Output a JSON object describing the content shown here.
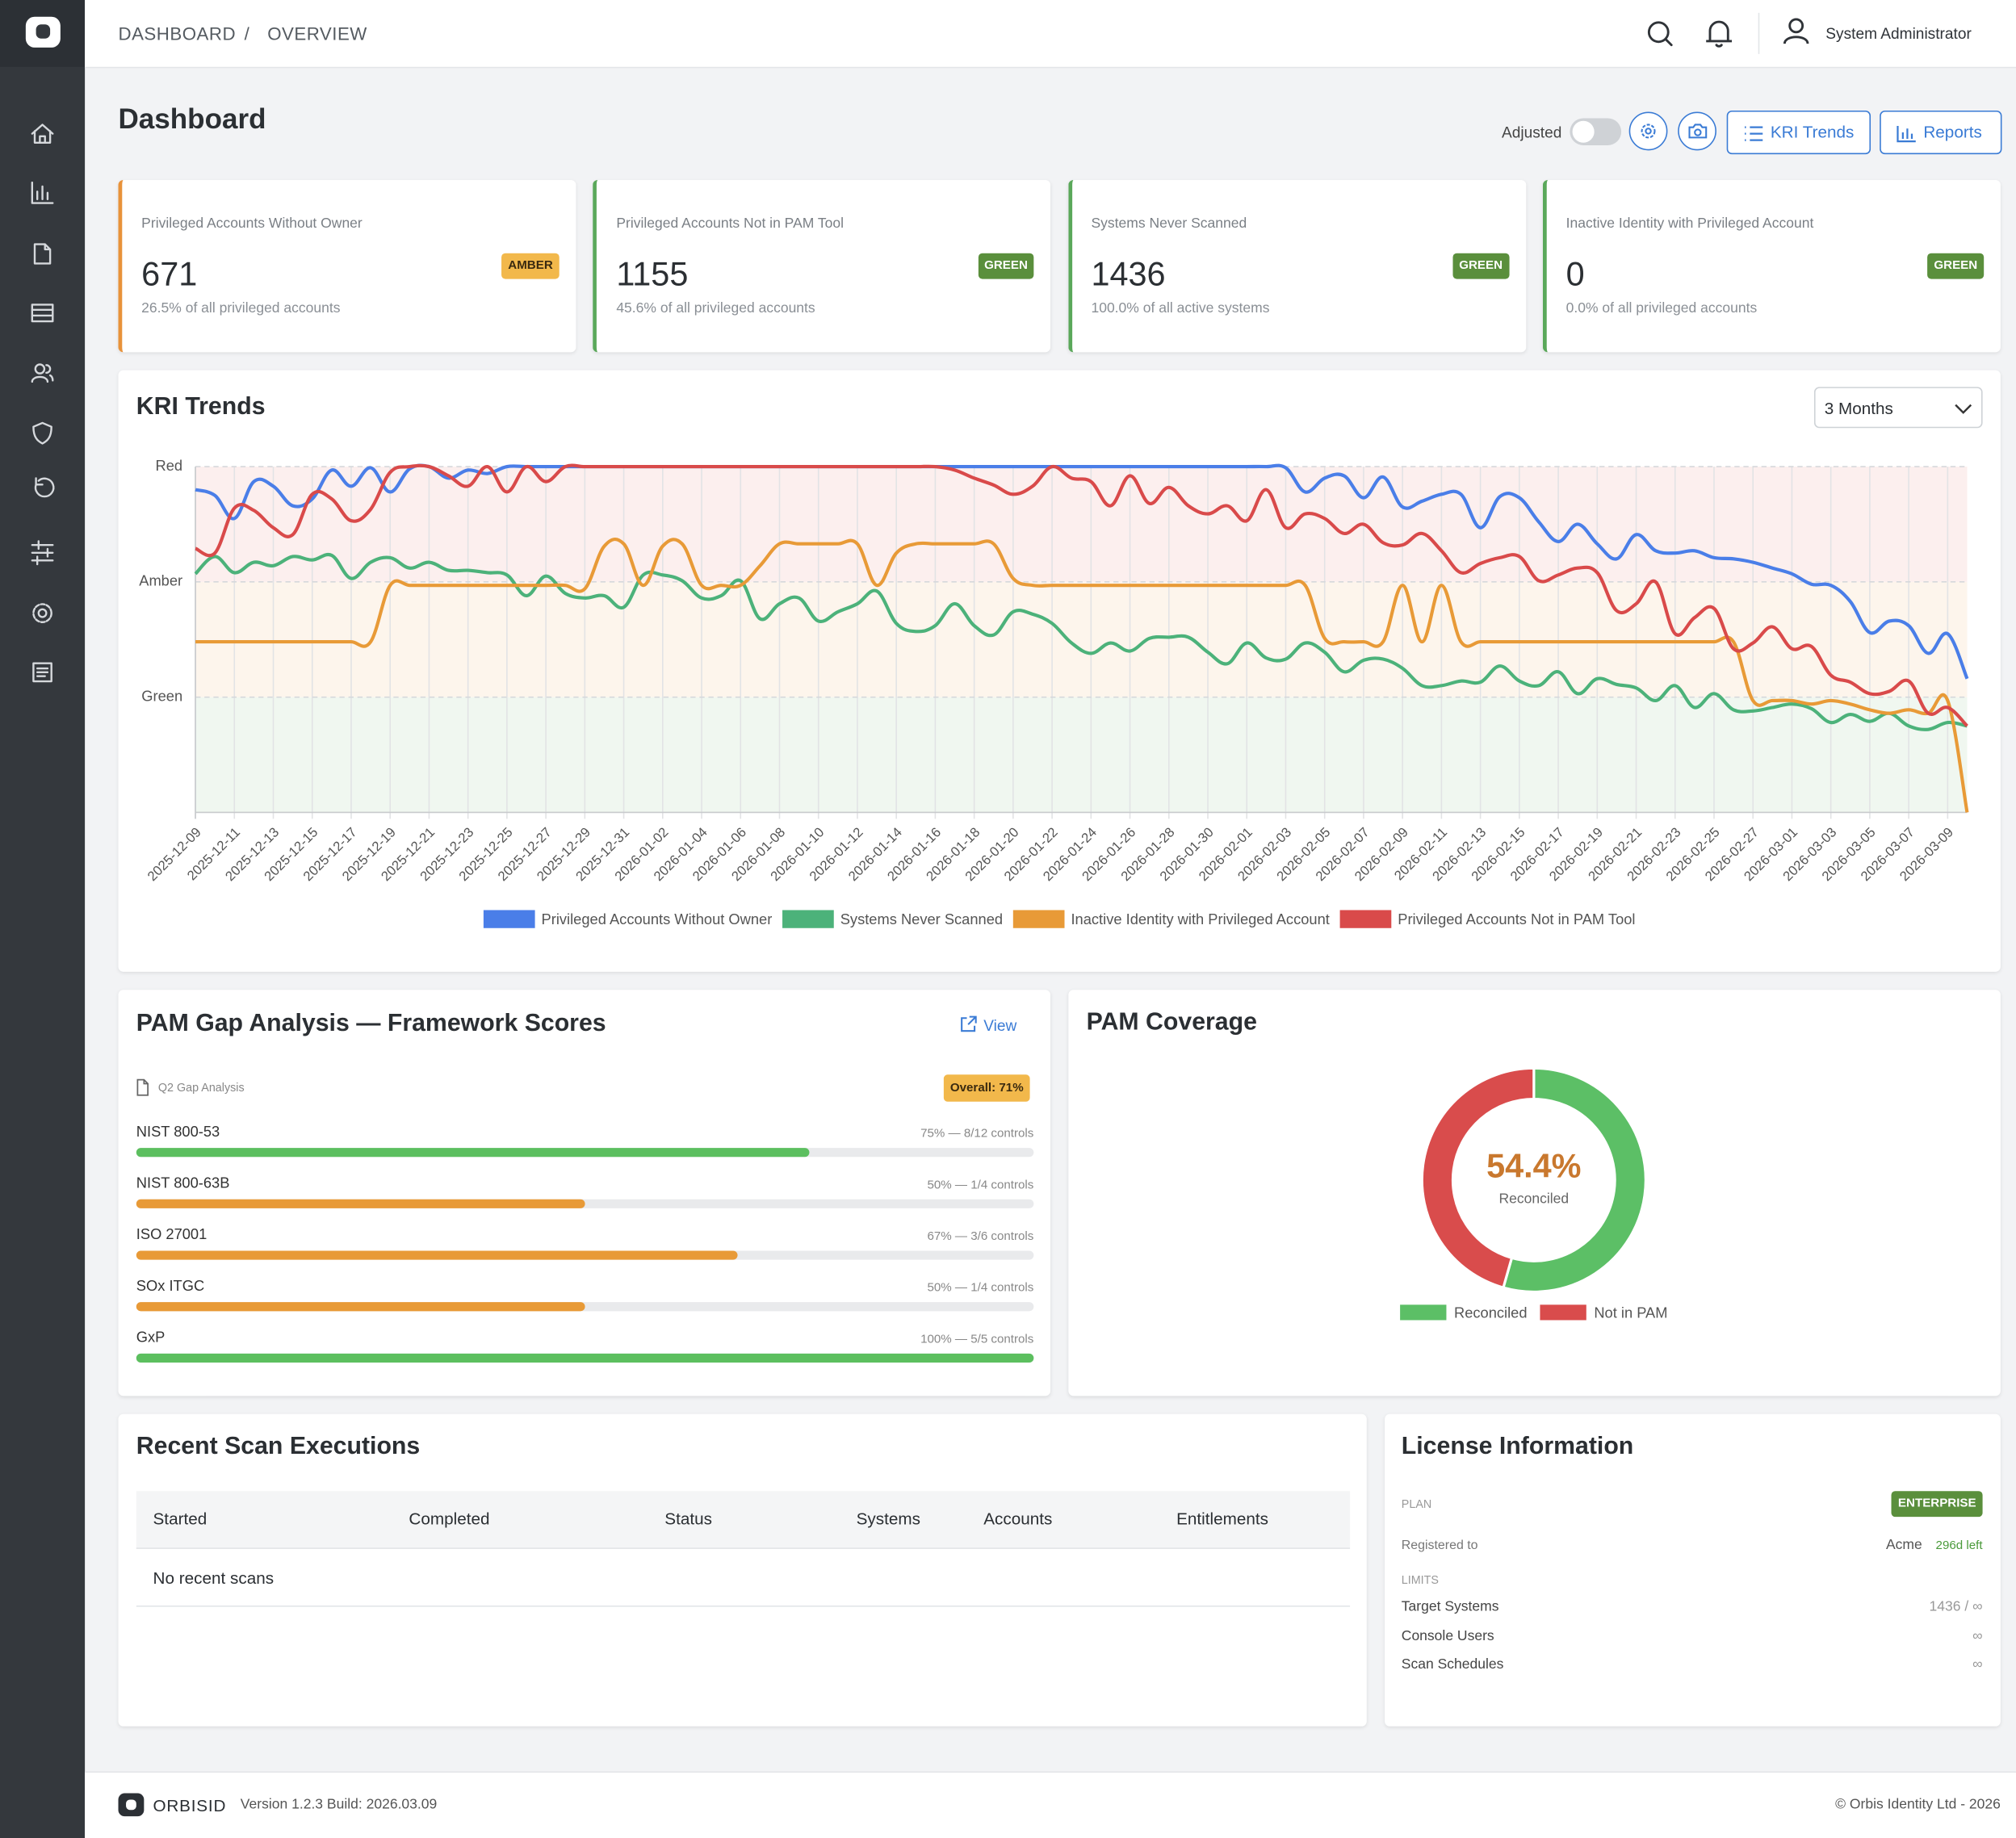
{
  "header": {
    "breadcrumb": [
      "DASHBOARD",
      "OVERVIEW"
    ],
    "separator": "/",
    "user": "System Administrator"
  },
  "page": {
    "title": "Dashboard",
    "toggle_label": "Adjusted",
    "buttons": [
      "KRI Trends",
      "Reports"
    ]
  },
  "kpis": [
    {
      "label": "Privileged Accounts Without Owner",
      "value": 671,
      "note": "26.5% of all privileged accounts",
      "status": "AMBER",
      "color": "#e8923a",
      "status_color": "#f2b84b",
      "status_text_color": "#3a2a10"
    },
    {
      "label": "Privileged Accounts Not in PAM Tool",
      "value": 1155,
      "note": "45.6% of all privileged accounts",
      "status": "GREEN",
      "color": "#5aa85a",
      "status_color": "#5a8f3c",
      "status_text_color": "#ffffff"
    },
    {
      "label": "Systems Never Scanned",
      "value": 1436,
      "note": "100.0% of all active systems",
      "status": "GREEN",
      "color": "#5aa85a",
      "status_color": "#5a8f3c",
      "status_text_color": "#ffffff"
    },
    {
      "label": "Inactive Identity with Privileged Account",
      "value": 0,
      "note": "0.0% of all privileged accounts",
      "status": "GREEN",
      "color": "#5aa85a",
      "status_color": "#5a8f3c",
      "status_text_color": "#ffffff"
    }
  ],
  "chart_data": [
    {
      "type": "line",
      "title": "KRI Trends",
      "range_select": "3 Months",
      "ylim": [
        0,
        3
      ],
      "yticks": [
        {
          "value": 1,
          "label": "Green"
        },
        {
          "value": 2,
          "label": "Amber"
        },
        {
          "value": 3,
          "label": "Red"
        }
      ],
      "zones": [
        {
          "from": 0,
          "to": 1,
          "color": "#f0f7f0"
        },
        {
          "from": 1,
          "to": 2,
          "color": "#fdf5ec"
        },
        {
          "from": 2,
          "to": 3,
          "color": "#fcefee"
        }
      ],
      "grid": true,
      "legend": "bottom",
      "categories": [
        "2025-12-09",
        null,
        "2025-12-11",
        null,
        "2025-12-13",
        null,
        "2025-12-15",
        null,
        "2025-12-17",
        null,
        "2025-12-19",
        null,
        "2025-12-21",
        null,
        "2025-12-23",
        null,
        "2025-12-25",
        null,
        "2025-12-27",
        null,
        "2025-12-29",
        null,
        "2025-12-31",
        null,
        "2026-01-02",
        null,
        "2026-01-04",
        null,
        "2026-01-06",
        null,
        "2026-01-08",
        null,
        "2026-01-10",
        null,
        "2026-01-12",
        null,
        "2026-01-14",
        null,
        "2026-01-16",
        null,
        "2026-01-18",
        null,
        "2026-01-20",
        null,
        "2026-01-22",
        null,
        "2026-01-24",
        null,
        "2026-01-26",
        null,
        "2026-01-28",
        null,
        "2026-01-30",
        null,
        "2026-02-01",
        null,
        "2026-02-03",
        null,
        "2026-02-05",
        null,
        "2026-02-07",
        null,
        "2026-02-09",
        null,
        "2026-02-11",
        null,
        "2026-02-13",
        null,
        "2026-02-15",
        null,
        "2026-02-17",
        null,
        "2026-02-19",
        null,
        "2026-02-21",
        null,
        "2026-02-23",
        null,
        "2026-02-25",
        null,
        "2026-02-27",
        null,
        "2026-03-01",
        null,
        "2026-03-03",
        null,
        "2026-03-05",
        null,
        "2026-03-07",
        null,
        "2026-03-09",
        null
      ],
      "series": [
        {
          "name": "Privileged Accounts Without Owner",
          "color": "#4a7ee8",
          "values": [
            2.8,
            2.75,
            2.55,
            2.87,
            2.83,
            2.66,
            2.72,
            2.97,
            2.83,
            2.99,
            2.78,
            2.98,
            3,
            2.9,
            2.97,
            2.94,
            3,
            3,
            3,
            3,
            3,
            3,
            3,
            3,
            3,
            3,
            3,
            3,
            3,
            3,
            3,
            3,
            3,
            3,
            3,
            3,
            3,
            3,
            3,
            3,
            3,
            3,
            3,
            3,
            3,
            3,
            3,
            3,
            3,
            3,
            3,
            3,
            3,
            3,
            3,
            3,
            2.99,
            2.78,
            2.9,
            2.92,
            2.73,
            2.91,
            2.65,
            2.7,
            2.76,
            2.76,
            2.47,
            2.74,
            2.73,
            2.52,
            2.35,
            2.5,
            2.33,
            2.2,
            2.41,
            2.27,
            2.25,
            2.27,
            2.21,
            2.2,
            2.17,
            2.12,
            2.07,
            1.98,
            1.97,
            1.83,
            1.56,
            1.66,
            1.62,
            1.38,
            1.55,
            1.16
          ]
        },
        {
          "name": "Systems Never Scanned",
          "color": "#4cb27a",
          "values": [
            2.07,
            2.22,
            2.08,
            2.17,
            2.14,
            2.22,
            2.19,
            2.23,
            2.03,
            2.17,
            2.21,
            2.12,
            2.17,
            2.1,
            2.1,
            2.08,
            2.06,
            1.88,
            2.05,
            1.9,
            1.86,
            1.88,
            1.78,
            2.06,
            2.06,
            2.01,
            1.86,
            1.88,
            2.01,
            1.68,
            1.81,
            1.86,
            1.66,
            1.74,
            1.81,
            1.92,
            1.64,
            1.57,
            1.62,
            1.81,
            1.62,
            1.54,
            1.74,
            1.72,
            1.64,
            1.47,
            1.38,
            1.47,
            1.4,
            1.51,
            1.52,
            1.52,
            1.39,
            1.29,
            1.47,
            1.34,
            1.33,
            1.47,
            1.39,
            1.22,
            1.32,
            1.33,
            1.25,
            1.1,
            1.1,
            1.14,
            1.13,
            1.27,
            1.14,
            1.1,
            1.22,
            1.03,
            1.16,
            1.11,
            1.08,
            0.97,
            1.1,
            0.91,
            1.03,
            0.89,
            0.88,
            0.91,
            0.94,
            0.9,
            0.78,
            0.85,
            0.79,
            0.86,
            0.75,
            0.72,
            0.78,
            0.75
          ]
        },
        {
          "name": "Inactive Identity with Privileged Account",
          "color": "#e89a37",
          "values": [
            1.48,
            1.48,
            1.48,
            1.48,
            1.48,
            1.48,
            1.48,
            1.48,
            1.48,
            1.48,
            1.97,
            1.97,
            1.97,
            1.97,
            1.97,
            1.97,
            1.97,
            1.97,
            1.97,
            1.97,
            1.94,
            2.31,
            2.33,
            1.97,
            2.31,
            2.33,
            1.97,
            1.97,
            1.97,
            2.14,
            2.33,
            2.33,
            2.33,
            2.33,
            2.33,
            1.97,
            2.25,
            2.33,
            2.33,
            2.33,
            2.33,
            2.33,
            2.03,
            1.97,
            1.97,
            1.97,
            1.97,
            1.97,
            1.97,
            1.97,
            1.97,
            1.97,
            1.97,
            1.97,
            1.97,
            1.97,
            1.97,
            1.97,
            1.51,
            1.48,
            1.48,
            1.48,
            1.97,
            1.48,
            1.97,
            1.48,
            1.48,
            1.48,
            1.48,
            1.48,
            1.48,
            1.48,
            1.48,
            1.48,
            1.48,
            1.48,
            1.48,
            1.48,
            1.48,
            1.48,
            0.97,
            0.97,
            0.97,
            0.94,
            0.97,
            0.94,
            0.89,
            0.86,
            0.89,
            0.86,
            0.97,
            0
          ]
        },
        {
          "name": "Privileged Accounts Not in PAM Tool",
          "color": "#d94a4a",
          "values": [
            2.29,
            2.25,
            2.64,
            2.62,
            2.47,
            2.41,
            2.76,
            2.72,
            2.53,
            2.63,
            2.95,
            3,
            3,
            2.92,
            2.83,
            3,
            2.78,
            3,
            2.87,
            3,
            3,
            3,
            3,
            3,
            3,
            3,
            3,
            3,
            3,
            3,
            3,
            3,
            3,
            3,
            3,
            3,
            3,
            3,
            3,
            2.97,
            2.9,
            2.84,
            2.76,
            2.83,
            3,
            2.9,
            2.87,
            2.66,
            2.92,
            2.68,
            2.82,
            2.66,
            2.59,
            2.66,
            2.53,
            2.8,
            2.47,
            2.59,
            2.55,
            2.42,
            2.5,
            2.34,
            2.32,
            2.42,
            2.27,
            2.08,
            2.16,
            2.21,
            2.22,
            2.01,
            2.06,
            2.12,
            2.08,
            1.75,
            1.81,
            2.0,
            1.55,
            1.69,
            1.77,
            1.42,
            1.47,
            1.61,
            1.42,
            1.44,
            1.19,
            1.13,
            1.03,
            1.05,
            1.14,
            0.86,
            0.91,
            0.75
          ]
        }
      ]
    },
    {
      "type": "bar",
      "orientation": "horizontal",
      "title": "PAM Gap Analysis — Framework Scores",
      "link": "View",
      "source": "Q2 Gap Analysis",
      "overall": "Overall: 71%",
      "xlim": [
        0,
        100
      ],
      "categories": [
        "NIST 800-53",
        "NIST 800-63B",
        "ISO 27001",
        "SOx ITGC",
        "GxP"
      ],
      "values": [
        75,
        50,
        67,
        50,
        100
      ],
      "value_labels": [
        "75% — 8/12 controls",
        "50% — 1/4 controls",
        "67% — 3/6 controls",
        "50% — 1/4 controls",
        "100% — 5/5 controls"
      ],
      "colors": [
        "#5cbf5f",
        "#e89a37",
        "#e89a37",
        "#e89a37",
        "#5cbf5f"
      ]
    },
    {
      "type": "pie",
      "donut": true,
      "title": "PAM Coverage",
      "categories": [
        "Reconciled",
        "Not in PAM"
      ],
      "values": [
        54.4,
        45.6
      ],
      "value_labels": [
        "54.4%",
        null
      ],
      "colors": [
        "#5cbf66",
        "#d94c4c"
      ],
      "legend": "bottom"
    }
  ],
  "scans": {
    "title": "Recent Scan Executions",
    "columns": [
      "Started",
      "Completed",
      "Status",
      "Systems",
      "Accounts",
      "Entitlements"
    ],
    "empty": "No recent scans"
  },
  "license": {
    "title": "License Information",
    "plan_label": "PLAN",
    "plan": "ENTERPRISE",
    "registered_label": "Registered to",
    "registered": "Acme",
    "remaining": "296d left",
    "limits_label": "LIMITS",
    "limits": [
      [
        "Target Systems",
        "1436 / ∞"
      ],
      [
        "Console Users",
        "∞"
      ],
      [
        "Scan Schedules",
        "∞"
      ]
    ]
  },
  "footer": {
    "brand": "ORBISID",
    "version": "Version 1.2.3 Build: 2026.03.09",
    "copyright": "© Orbis Identity Ltd - 2026"
  }
}
